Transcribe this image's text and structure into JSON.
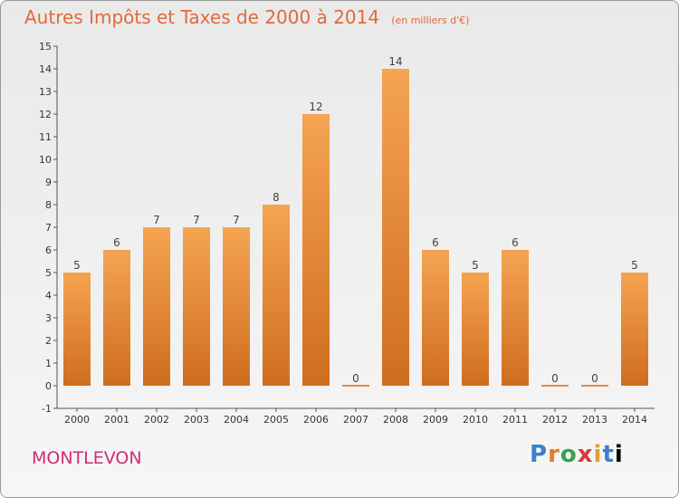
{
  "title": "Autres Impôts et Taxes de 2000 à 2014",
  "subtitle": "(en milliers d'€)",
  "commune": "MONTLEVON",
  "brand": "Proxiti",
  "colors": {
    "bar_light": "#f5a452",
    "bar_dark": "#cf6d1e",
    "title": "#e06a3a",
    "commune": "#cc2e73"
  },
  "chart_data": {
    "type": "bar",
    "title": "Autres Impôts et Taxes de 2000 à 2014",
    "subtitle": "(en milliers d'€)",
    "categories": [
      "2000",
      "2001",
      "2002",
      "2003",
      "2004",
      "2005",
      "2006",
      "2007",
      "2008",
      "2009",
      "2010",
      "2011",
      "2012",
      "2013",
      "2014"
    ],
    "values": [
      5,
      6,
      7,
      7,
      7,
      8,
      12,
      0,
      14,
      6,
      5,
      6,
      0,
      0,
      5
    ],
    "ylim": [
      -1,
      15
    ],
    "yticks": [
      "-1",
      "0",
      "1",
      "2",
      "3",
      "4",
      "5",
      "6",
      "7",
      "8",
      "9",
      "10",
      "11",
      "12",
      "13",
      "14",
      "15"
    ],
    "grid": false,
    "data_labels": true
  }
}
